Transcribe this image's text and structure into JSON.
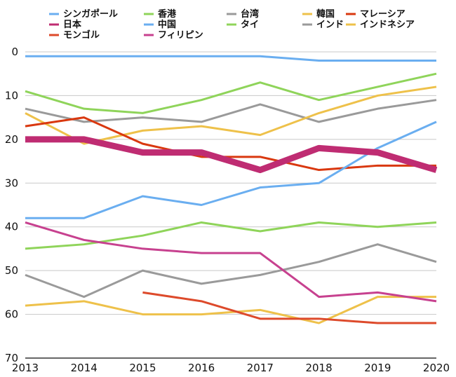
{
  "chart_data": {
    "type": "line",
    "x": [
      2013,
      2014,
      2015,
      2016,
      2017,
      2018,
      2019,
      2020
    ],
    "ylim": [
      0,
      70
    ],
    "y_inverted": true,
    "y_ticks": [
      0,
      10,
      20,
      30,
      40,
      50,
      60,
      70
    ],
    "grid": "horizontal",
    "legend_position": "top",
    "series": [
      {
        "name": "シンガポール",
        "color": "#6aaef0",
        "values": [
          1,
          1,
          1,
          1,
          1,
          2,
          2,
          2
        ]
      },
      {
        "name": "香港",
        "color": "#8fd45a",
        "values": [
          9,
          13,
          14,
          11,
          7,
          11,
          8,
          5
        ]
      },
      {
        "name": "台湾",
        "color": "#9a9a9a",
        "values": [
          13,
          16,
          15,
          16,
          12,
          16,
          13,
          11
        ]
      },
      {
        "name": "韓国",
        "color": "#eec14a",
        "values": [
          14,
          21,
          18,
          17,
          19,
          14,
          10,
          8
        ]
      },
      {
        "name": "マレーシア",
        "color": "#d9380f",
        "values": [
          17,
          15,
          21,
          24,
          24,
          27,
          26,
          26
        ]
      },
      {
        "name": "日本",
        "color": "#bf2c72",
        "values": [
          20,
          20,
          23,
          23,
          27,
          22,
          23,
          27
        ]
      },
      {
        "name": "中国",
        "color": "#6aaef0",
        "values": [
          38,
          38,
          33,
          35,
          31,
          30,
          22,
          16
        ]
      },
      {
        "name": "タイ",
        "color": "#8fd45a",
        "values": [
          45,
          44,
          42,
          39,
          41,
          39,
          40,
          39
        ]
      },
      {
        "name": "インド",
        "color": "#9a9a9a",
        "values": [
          51,
          56,
          50,
          53,
          51,
          48,
          44,
          48
        ]
      },
      {
        "name": "インドネシア",
        "color": "#eec14a",
        "values": [
          58,
          57,
          60,
          60,
          59,
          62,
          56,
          56
        ]
      },
      {
        "name": "モンゴル",
        "color": "#dd4a2b",
        "values": [
          null,
          null,
          55,
          57,
          61,
          61,
          62,
          62
        ]
      },
      {
        "name": "フィリピン",
        "color": "#c7418f",
        "values": [
          39,
          43,
          45,
          46,
          46,
          56,
          55,
          57
        ]
      }
    ],
    "emphasized_series": "日本"
  }
}
